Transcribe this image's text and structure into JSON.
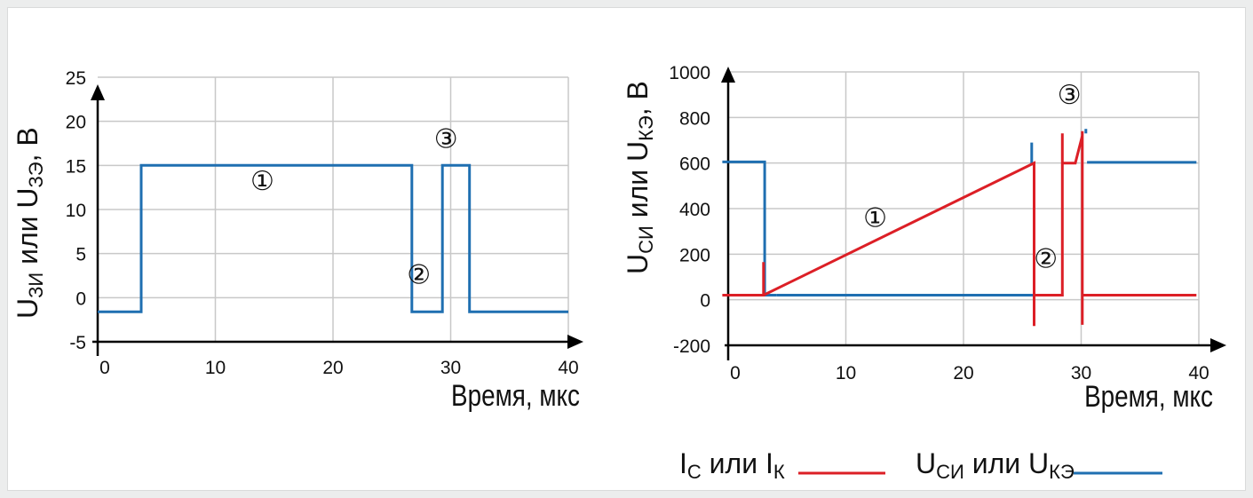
{
  "colors": {
    "gate": "#1f6fb1",
    "current": "#dc1f26",
    "voltage": "#1f6fb1",
    "grid": "#c8c8c8",
    "axis": "#000000"
  },
  "chart_data": [
    {
      "type": "line",
      "xlabel": "Время, мкс",
      "ylabel": {
        "main": "U",
        "sub1": "ЗИ",
        "mid": " или U",
        "sub2": "ЗЭ",
        "tail": ", В"
      },
      "xlim": [
        0,
        40
      ],
      "ylim": [
        -5,
        25
      ],
      "xticks": [
        "0",
        "10",
        "20",
        "30",
        "40"
      ],
      "yticks": [
        "-5",
        "0",
        "5",
        "10",
        "15",
        "20",
        "25"
      ],
      "grid": true,
      "series": [
        {
          "color": "#1f6fb1",
          "x": [
            0,
            3.7,
            3.7,
            26.7,
            26.7,
            29.3,
            29.3,
            31.6,
            31.6,
            40
          ],
          "y": [
            -1.6,
            -1.6,
            15,
            15,
            -1.6,
            -1.6,
            15,
            15,
            -1.6,
            -1.6
          ]
        }
      ],
      "annotations": [
        {
          "text": "①",
          "x": 14,
          "y": 12.2
        },
        {
          "text": "②",
          "x": 27.3,
          "y": 1.6
        },
        {
          "text": "③",
          "x": 29.6,
          "y": 17
        }
      ]
    },
    {
      "type": "line",
      "xlabel": "Время, мкс",
      "ylabel": {
        "main": "U",
        "sub1": "СИ",
        "mid": " или U",
        "sub2": "КЭ",
        "tail": ", В"
      },
      "xlim": [
        0,
        40
      ],
      "ylim": [
        -200,
        1000
      ],
      "xticks": [
        "0",
        "10",
        "20",
        "30",
        "40"
      ],
      "yticks": [
        "-200",
        "0",
        "200",
        "400",
        "600",
        "800",
        "1000"
      ],
      "grid": true,
      "series": [
        {
          "name": "U_СИ или U_КЭ",
          "color": "#1f6fb1",
          "segments": [
            {
              "x": [
                -0.5,
                3.1,
                3.1,
                4.1
              ],
              "y": [
                605,
                605,
                20,
                20
              ]
            },
            {
              "x": [
                4.1,
                28.5
              ],
              "y": [
                20,
                20
              ]
            },
            {
              "x": [
                25.8,
                25.8
              ],
              "y": [
                690,
                590
              ]
            },
            {
              "x": [
                30.4,
                30.4
              ],
              "y": [
                750,
                730
              ]
            },
            {
              "x": [
                30.5,
                39.8
              ],
              "y": [
                603,
                603
              ]
            }
          ]
        },
        {
          "name": "I_С или I_К",
          "color": "#dc1f26",
          "segments": [
            {
              "x": [
                -0.5,
                3.0,
                3.0,
                3.0
              ],
              "y": [
                20,
                20,
                20,
                165
              ]
            },
            {
              "x": [
                3.0,
                26.0,
                26.0
              ],
              "y": [
                20,
                600,
                -115
              ]
            },
            {
              "x": [
                26.0,
                26.0,
                28.4,
                28.4,
                28.4,
                28.4
              ],
              "y": [
                20,
                20,
                20,
                20,
                730,
                600
              ]
            },
            {
              "x": [
                28.4,
                29.5,
                30.1,
                30.1,
                30.1
              ],
              "y": [
                600,
                600,
                720,
                740,
                -110
              ]
            },
            {
              "x": [
                30.1,
                39.8
              ],
              "y": [
                20,
                20
              ]
            }
          ]
        }
      ],
      "annotations": [
        {
          "text": "①",
          "x": 12.5,
          "y": 320
        },
        {
          "text": "②",
          "x": 27,
          "y": 140
        },
        {
          "text": "③",
          "x": 29,
          "y": 860
        }
      ],
      "legend": {
        "placement": "bottom-right",
        "items": [
          {
            "label": {
              "main": "I",
              "sub1": "С",
              "mid": " или I",
              "sub2": "К"
            },
            "color": "#dc1f26"
          },
          {
            "label": {
              "main": "U",
              "sub1": "СИ",
              "mid": " или U",
              "sub2": "КЭ"
            },
            "color": "#1f6fb1"
          }
        ]
      }
    }
  ]
}
